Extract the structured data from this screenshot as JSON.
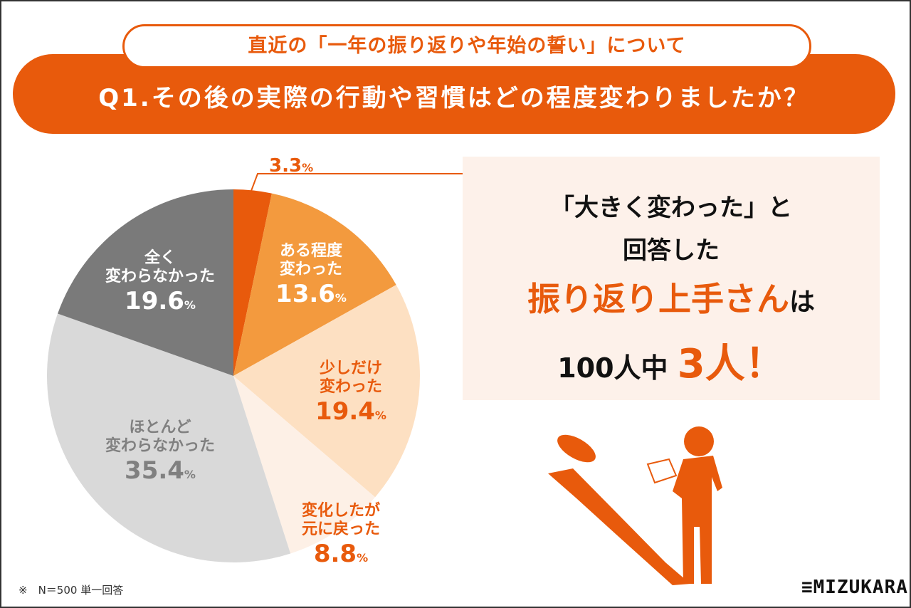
{
  "header": {
    "subtitle": "直近の「一年の振り返りや年始の誓い」について",
    "question": "Q1.その後の実際の行動や習慣はどの程度変わりましたか？"
  },
  "chart_data": {
    "type": "pie",
    "start": "top, clockwise",
    "unit": "%",
    "slices": [
      {
        "label": "大きく変わった",
        "value": 3.3,
        "display": "3.3",
        "color": "#e85a0c"
      },
      {
        "label": "ある程度変わった",
        "line1": "ある程度",
        "line2": "変わった",
        "value": 13.6,
        "display": "13.6",
        "color": "#f39a3e"
      },
      {
        "label": "少しだけ変わった",
        "line1": "少しだけ",
        "line2": "変わった",
        "value": 19.4,
        "display": "19.4",
        "color": "#fde0c2"
      },
      {
        "label": "変化したが元に戻った",
        "line1": "変化したが",
        "line2": "元に戻った",
        "value": 8.8,
        "display": "8.8",
        "color": "#fdf0e6"
      },
      {
        "label": "ほとんど変わらなかった",
        "line1": "ほとんど",
        "line2": "変わらなかった",
        "value": 35.4,
        "display": "35.4",
        "color": "#d9d9d9"
      },
      {
        "label": "全く変わらなかった",
        "line1": "全く",
        "line2": "変わらなかった",
        "value": 19.6,
        "display": "19.6",
        "color": "#7a7a7a"
      }
    ]
  },
  "callout": {
    "line1": "「大きく変わった」と",
    "line2": "回答した",
    "highlight": "振り返り上手さん",
    "highlight_suffix": "は",
    "count_prefix": "100人中",
    "count": "3人",
    "exclaim": "！"
  },
  "footer": {
    "note": "※　N＝500 単一回答",
    "logo": "MIZUKARA"
  },
  "colors": {
    "accent": "#e85a0c",
    "panel": "#fdf1ea"
  }
}
